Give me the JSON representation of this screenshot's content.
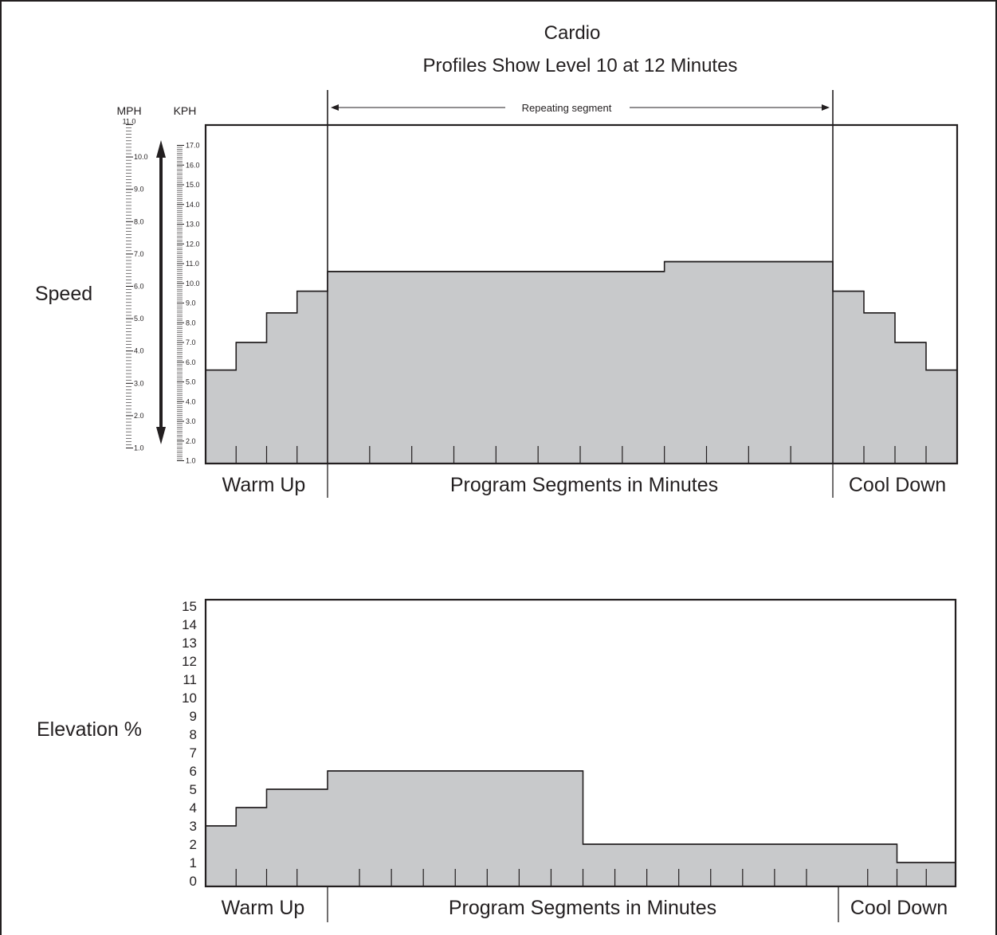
{
  "title": "Cardio",
  "subtitle": "Profiles Show Level 10 at 12 Minutes",
  "repeating_label": "Repeating segment",
  "colors": {
    "fill": "#c8c9cb",
    "ink": "#231f20",
    "background": "#ffffff"
  },
  "chart_data": [
    {
      "type": "area",
      "name": "speed",
      "row_label": "Speed",
      "unit_labels": {
        "mph": "MPH",
        "kph": "KPH"
      },
      "mph_ticks": [
        "11.0",
        "10.0",
        "9.0",
        "8.0",
        "7.0",
        "6.0",
        "5.0",
        "4.0",
        "3.0",
        "2.0",
        "1.0"
      ],
      "kph_ticks": [
        "17.0",
        "16.0",
        "15.0",
        "14.0",
        "13.0",
        "12.0",
        "11.0",
        "10.0",
        "9.0",
        "8.0",
        "7.0",
        "6.0",
        "5.0",
        "4.0",
        "3.0",
        "2.0",
        "1.0"
      ],
      "kph_range": [
        1.0,
        18.0
      ],
      "steps": [
        {
          "from": 0,
          "to": 1,
          "kph": 5.6
        },
        {
          "from": 1,
          "to": 2,
          "kph": 7.0
        },
        {
          "from": 2,
          "to": 3,
          "kph": 8.5
        },
        {
          "from": 3,
          "to": 4,
          "kph": 9.6
        },
        {
          "from": 4,
          "to": 12,
          "kph": 10.6
        },
        {
          "from": 12,
          "to": 16,
          "kph": 11.1
        },
        {
          "from": 16,
          "to": 17,
          "kph": 9.6
        },
        {
          "from": 17,
          "to": 18,
          "kph": 8.5
        },
        {
          "from": 18,
          "to": 19,
          "kph": 7.0
        },
        {
          "from": 19,
          "to": 20,
          "kph": 5.6
        }
      ],
      "sections": [
        "Warm Up",
        "Program Segments in Minutes",
        "Cool Down"
      ],
      "warmup_minutes": 4,
      "cooldown_minutes": 4,
      "total_minutes": 20
    },
    {
      "type": "area",
      "name": "elevation",
      "row_label": "Elevation %",
      "y_ticks": [
        "15",
        "14",
        "13",
        "12",
        "11",
        "10",
        "9",
        "8",
        "7",
        "6",
        "5",
        "4",
        "3",
        "2",
        "1",
        "0"
      ],
      "ylim": [
        0,
        15
      ],
      "steps": [
        {
          "from": 0,
          "to": 1,
          "value": 3
        },
        {
          "from": 1,
          "to": 2,
          "value": 4
        },
        {
          "from": 2,
          "to": 4,
          "value": 5
        },
        {
          "from": 4,
          "to": 12,
          "value": 6
        },
        {
          "from": 12,
          "to": 22,
          "value": 2
        },
        {
          "from": 22,
          "to": 24,
          "value": 1
        }
      ],
      "sections": [
        "Warm Up",
        "Program Segments in Minutes",
        "Cool Down"
      ],
      "warmup_minutes": 4,
      "cooldown_minutes": 4,
      "total_minutes": 24
    }
  ]
}
